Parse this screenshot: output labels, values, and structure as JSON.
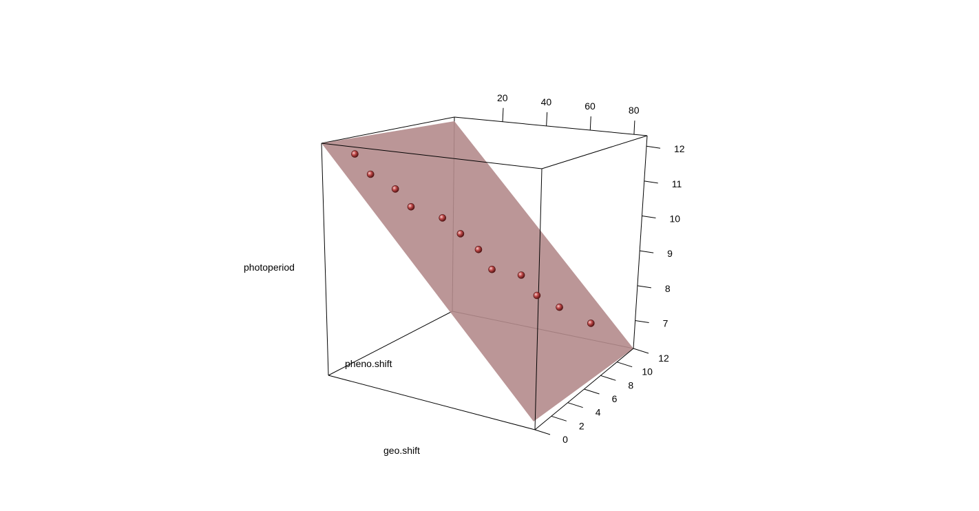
{
  "chart_data": {
    "type": "scatter",
    "subtype": "3d-scatter-with-regression-plane",
    "axes": {
      "x": {
        "label": "geo.shift",
        "ticks": [
          0,
          2,
          4,
          6,
          8,
          10,
          12
        ],
        "range": [
          0,
          12
        ]
      },
      "y": {
        "label": "pheno.shift",
        "ticks": [
          20,
          40,
          60,
          80
        ],
        "range": [
          0,
          85
        ]
      },
      "z": {
        "label": "photoperiod",
        "ticks": [
          7,
          8,
          9,
          10,
          11,
          12
        ],
        "range": [
          6.5,
          12
        ]
      }
    },
    "points": [
      {
        "x": 0.5,
        "y": 1,
        "z": 12
      },
      {
        "x": 1.2,
        "y": 9,
        "z": 11.3
      },
      {
        "x": 2.3,
        "y": 17,
        "z": 10.9
      },
      {
        "x": 3.0,
        "y": 24,
        "z": 10.3
      },
      {
        "x": 4.4,
        "y": 34,
        "z": 10.1
      },
      {
        "x": 5.2,
        "y": 41,
        "z": 9.6
      },
      {
        "x": 6.0,
        "y": 48,
        "z": 9.1
      },
      {
        "x": 6.6,
        "y": 52,
        "z": 8.4
      },
      {
        "x": 7.9,
        "y": 63,
        "z": 8.4
      },
      {
        "x": 8.6,
        "y": 68,
        "z": 7.7
      },
      {
        "x": 9.6,
        "y": 77,
        "z": 7.4
      },
      {
        "x": 11.0,
        "y": 85,
        "z": 7.0
      }
    ],
    "plane": {
      "intercept": 12.2,
      "slope_x": -0.47,
      "slope_y": 0
    },
    "colors": {
      "plane": "#b48b8c",
      "point": "#b23a3a",
      "point_highlight": "#f2c4c4"
    },
    "grid": false,
    "legend": "none"
  }
}
